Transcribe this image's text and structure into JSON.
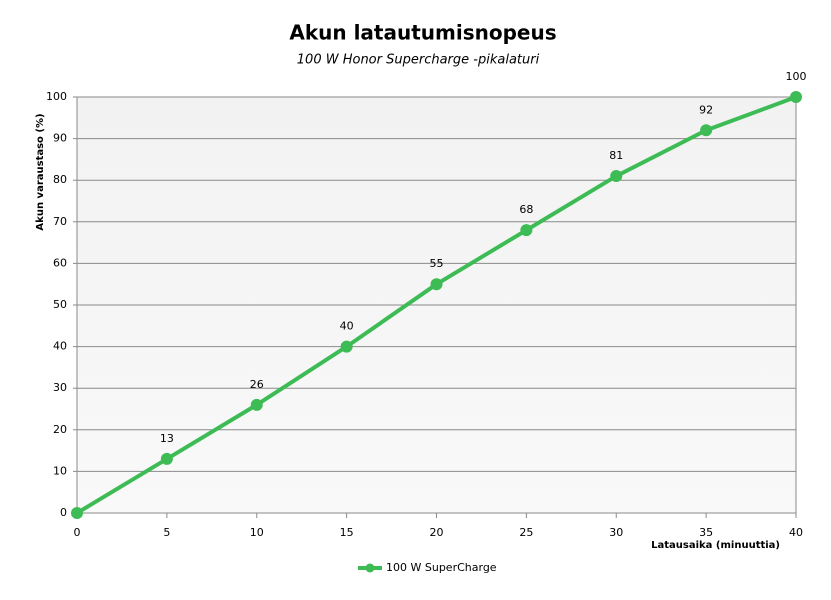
{
  "chart_data": {
    "type": "line",
    "title": "Akun latautumisnopeus",
    "subtitle": "100 W Honor Supercharge -pikalaturi",
    "xlabel": "Latausaika  (minuuttia)",
    "ylabel": "Akun varaustaso  (%)",
    "x": [
      0,
      5,
      10,
      15,
      20,
      25,
      30,
      35,
      40
    ],
    "series": [
      {
        "name": "100 W SuperCharge",
        "color": "#3dbb55",
        "values": [
          0,
          13,
          26,
          40,
          55,
          68,
          81,
          92,
          100
        ],
        "value_labels": [
          null,
          "13",
          "26",
          "40",
          "55",
          "68",
          "81",
          "92",
          "100"
        ]
      }
    ],
    "xlim": [
      0,
      40
    ],
    "xticks": [
      0,
      5,
      10,
      15,
      20,
      25,
      30,
      35,
      40
    ],
    "ylim": [
      0,
      100
    ],
    "yticks": [
      0,
      10,
      20,
      30,
      40,
      50,
      60,
      70,
      80,
      90,
      100
    ],
    "grid": true,
    "legend": "bottom"
  }
}
